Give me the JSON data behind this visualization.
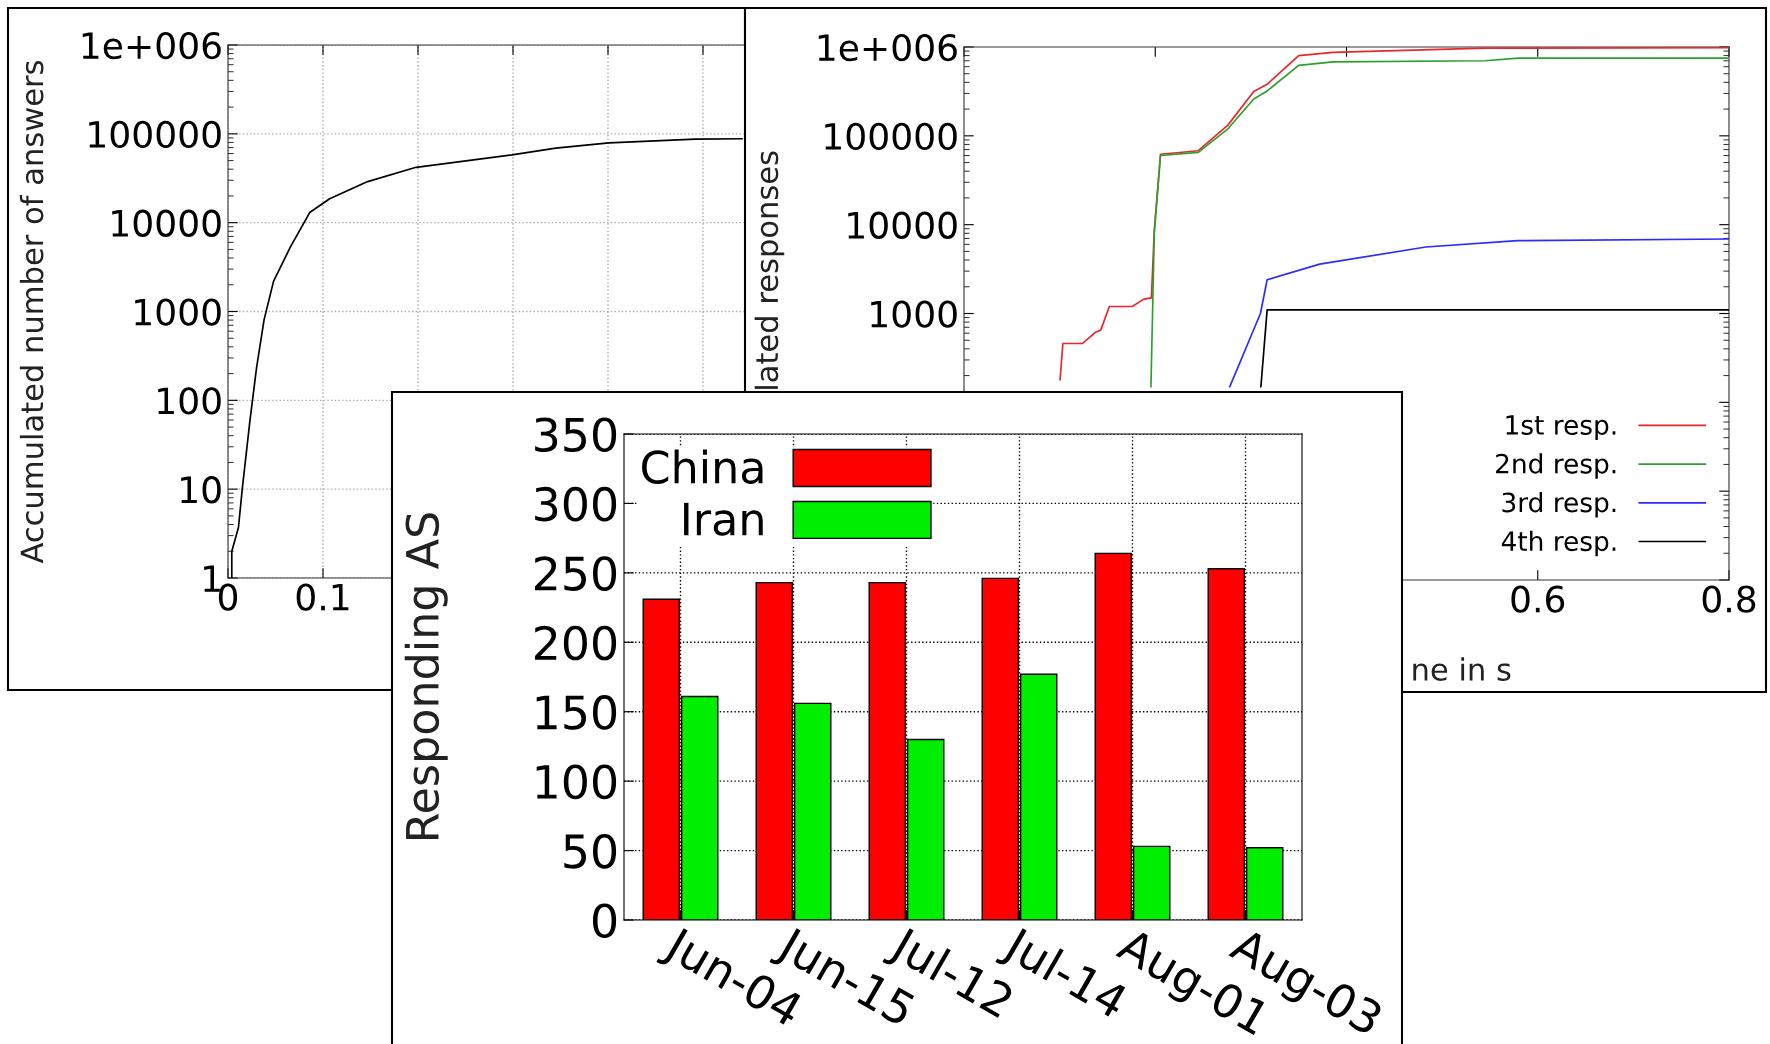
{
  "chart_data": [
    {
      "type": "line",
      "ylabel": "Accumulated number of answers",
      "log": "y",
      "grid": true,
      "xlim": [
        0,
        0.8
      ],
      "ylim": [
        1,
        1000000
      ],
      "xticks": [
        0,
        0.1,
        {
          "value": 0.2,
          "label": null
        },
        {
          "value": 0.3,
          "label": null
        },
        {
          "value": 0.4,
          "label": null
        },
        {
          "value": 0.5,
          "label": null
        },
        {
          "value": 0.6,
          "label": null
        },
        {
          "value": 0.7,
          "label": null
        },
        {
          "value": 0.8,
          "label": null
        }
      ],
      "yticks": [
        1,
        10,
        100,
        1000,
        10000,
        100000,
        {
          "value": 1000000,
          "label": "1e+006"
        }
      ],
      "series": [
        {
          "color": "#000000",
          "x": [
            0.004,
            0.004,
            0.011,
            0.015,
            0.023,
            0.03,
            0.038,
            0.048,
            0.066,
            0.086,
            0.107,
            0.147,
            0.198,
            0.299,
            0.345,
            0.401,
            0.492,
            0.541
          ],
          "values": [
            1,
            2,
            3.7,
            10,
            58,
            230,
            810,
            2200,
            5400,
            13000,
            18600,
            29000,
            42000,
            58000,
            69000,
            79000,
            87000,
            88000
          ]
        }
      ]
    },
    {
      "type": "line",
      "ylabel": "lated responses",
      "xlabel": "ne in s",
      "log": "y",
      "legend": "bottom right",
      "xlim": [
        0,
        0.8
      ],
      "ylim": [
        1,
        1000000
      ],
      "xticks": [
        {
          "value": 0,
          "label": null
        },
        {
          "value": 0.2,
          "label": null
        },
        {
          "value": 0.4,
          "label": null
        },
        0.6,
        0.8
      ],
      "yticks": [
        {
          "value": 1,
          "label": null
        },
        {
          "value": 10,
          "label": null
        },
        {
          "value": 100,
          "label": null
        },
        1000,
        10000,
        100000,
        {
          "value": 1000000,
          "label": "1e+006"
        }
      ],
      "series": [
        {
          "name": "1st resp.",
          "color": "#e8262b",
          "x": [
            0.1005,
            0.1034,
            0.124,
            0.138,
            0.143,
            0.152,
            0.176,
            0.188,
            0.196,
            0.199,
            0.2055,
            0.245,
            0.276,
            0.303,
            0.317,
            0.35,
            0.386,
            0.545,
            0.8
          ],
          "values": [
            180,
            460,
            460,
            620,
            650,
            1200,
            1200,
            1450,
            1500,
            8700,
            62000,
            68000,
            132000,
            316000,
            380000,
            800000,
            870000,
            970000,
            980000
          ]
        },
        {
          "name": "2nd resp.",
          "color": "#2ca02c",
          "x": [
            0.1955,
            0.199,
            0.2055,
            0.245,
            0.276,
            0.303,
            0.317,
            0.35,
            0.386,
            0.545,
            0.58,
            0.8
          ],
          "values": [
            150,
            8000,
            60000,
            65000,
            120000,
            260000,
            320000,
            620000,
            680000,
            700000,
            750000,
            750000
          ]
        },
        {
          "name": "3rd resp.",
          "color": "#2b2bff",
          "x": [
            0.278,
            0.31,
            0.317,
            0.372,
            0.483,
            0.579,
            0.8
          ],
          "values": [
            150,
            1000,
            2400,
            3600,
            5600,
            6600,
            6900
          ]
        },
        {
          "name": "4th resp.",
          "color": "#000000",
          "x": [
            0.3105,
            0.317,
            0.8
          ],
          "values": [
            150,
            1100,
            1100
          ]
        }
      ]
    },
    {
      "type": "bar",
      "ylabel": "Responding AS",
      "grid": true,
      "legend": "top left",
      "categories": [
        "Jun-04",
        "Jun-15",
        "Jul-12",
        "Jul-14",
        "Aug-01",
        "Aug-03"
      ],
      "ylim": [
        0,
        350
      ],
      "yticks": [
        0,
        50,
        100,
        150,
        200,
        250,
        300,
        350
      ],
      "series": [
        {
          "name": "China",
          "color": "#ff0000",
          "values": [
            231,
            243,
            243,
            246,
            264,
            253
          ]
        },
        {
          "name": "Iran",
          "color": "#00ee00",
          "values": [
            161,
            156,
            130,
            177,
            53,
            52
          ]
        }
      ]
    }
  ]
}
